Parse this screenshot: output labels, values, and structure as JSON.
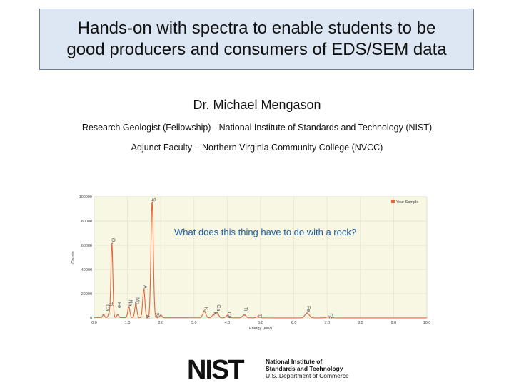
{
  "slide": {
    "title_line1": "Hands-on with spectra to enable students to be",
    "title_line2": "good producers and consumers of EDS/SEM data",
    "author": "Dr. Michael Mengason",
    "affiliation1": "Research Geologist (Fellowship) - National Institute of Standards and Technology (NIST)",
    "affiliation2": "Adjunct Faculty – Northern Virginia Community College (NVCC)",
    "question": "What does this thing have to do with a rock?"
  },
  "logo": {
    "mark": "NIST",
    "line1": "National Institute of",
    "line2": "Standards and Technology",
    "line3": "U.S. Department of Commerce"
  },
  "chart_data": {
    "type": "line",
    "xlabel": "Energy (keV)",
    "ylabel": "Counts",
    "xlim": [
      0,
      10
    ],
    "ylim": [
      0,
      100000
    ],
    "x_ticks": [
      "0.0",
      "1.0",
      "2.0",
      "3.0",
      "4.0",
      "5.0",
      "6.0",
      "7.0",
      "8.0",
      "9.0",
      "10.0"
    ],
    "y_ticks": [
      "0",
      "20000",
      "40000",
      "60000",
      "80000",
      "100000"
    ],
    "legend": "top-right",
    "grid": true,
    "colors": {
      "series": "#e8643c",
      "grid": "#e4e4c8",
      "plot_bg": "#f7f7e4"
    },
    "series": [
      {
        "name": "Your Sample",
        "peaks": [
          {
            "energy": 0.28,
            "counts": 2500
          },
          {
            "energy": 0.45,
            "counts": 3500
          },
          {
            "energy": 0.53,
            "counts": 62000
          },
          {
            "energy": 0.71,
            "counts": 2500
          },
          {
            "energy": 1.04,
            "counts": 9000
          },
          {
            "energy": 1.25,
            "counts": 11000
          },
          {
            "energy": 1.49,
            "counts": 23000
          },
          {
            "energy": 1.74,
            "counts": 96000
          },
          {
            "energy": 2.0,
            "counts": 2000
          },
          {
            "energy": 3.31,
            "counts": 5500
          },
          {
            "energy": 3.59,
            "counts": 2500
          },
          {
            "energy": 3.69,
            "counts": 4500
          },
          {
            "energy": 4.01,
            "counts": 2000
          },
          {
            "energy": 4.51,
            "counts": 2500
          },
          {
            "energy": 4.93,
            "counts": 1000
          },
          {
            "energy": 6.4,
            "counts": 4000
          },
          {
            "energy": 7.06,
            "counts": 1000
          }
        ]
      }
    ],
    "annotations": [
      {
        "label": "Ca",
        "energy": 0.34,
        "counts": 11000,
        "color": "#555555"
      },
      {
        "label": "Ti",
        "energy": 0.45,
        "counts": 13000,
        "color": "#555555"
      },
      {
        "label": "O",
        "energy": 0.53,
        "counts": 66000,
        "color": "#555555"
      },
      {
        "label": "Fe",
        "energy": 0.71,
        "counts": 13000,
        "color": "#555555"
      },
      {
        "label": "Na",
        "energy": 1.04,
        "counts": 15000,
        "color": "#555555"
      },
      {
        "label": "Mg",
        "energy": 1.25,
        "counts": 17000,
        "color": "#555555"
      },
      {
        "label": "Al",
        "energy": 1.49,
        "counts": 27000,
        "color": "#555555"
      },
      {
        "label": "Al",
        "energy": 1.57,
        "counts": 2500,
        "color": "#555555"
      },
      {
        "label": "Si",
        "energy": 1.74,
        "counts": 99000,
        "color": "#555555"
      },
      {
        "label": "Si",
        "energy": 1.84,
        "counts": 4500,
        "color": "#555555"
      },
      {
        "label": "K",
        "energy": 3.31,
        "counts": 9000,
        "color": "#555555"
      },
      {
        "label": "K",
        "energy": 3.59,
        "counts": 5000,
        "color": "#555555"
      },
      {
        "label": "Ca",
        "energy": 3.69,
        "counts": 11000,
        "color": "#555555"
      },
      {
        "label": "Ca",
        "energy": 4.01,
        "counts": 5000,
        "color": "#555555"
      },
      {
        "label": "Ti",
        "energy": 4.51,
        "counts": 9000,
        "color": "#555555"
      },
      {
        "label": "Ti",
        "energy": 4.93,
        "counts": 3500,
        "color": "#555555"
      },
      {
        "label": "Fe",
        "energy": 6.4,
        "counts": 10000,
        "color": "#555555"
      },
      {
        "label": "Fe",
        "energy": 7.06,
        "counts": 4000,
        "color": "#555555"
      }
    ]
  }
}
